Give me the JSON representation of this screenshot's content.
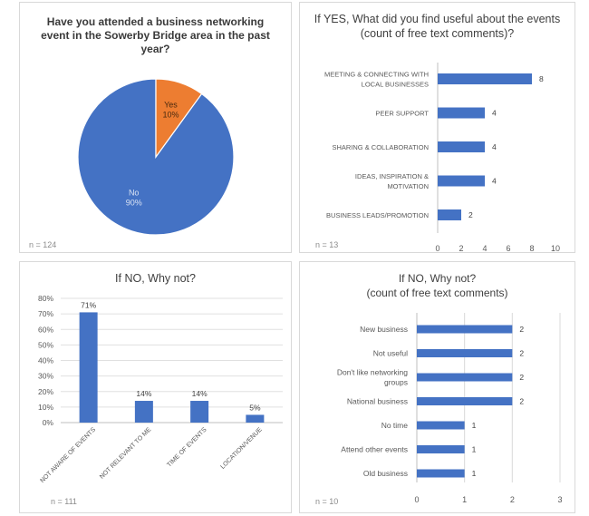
{
  "chart_data": [
    {
      "type": "pie",
      "title": "Have you attended a business networking event in the Sowerby Bridge area in the past year?",
      "slices": [
        {
          "label": "No",
          "pct_label": "90%",
          "value": 90,
          "color": "#4472C4"
        },
        {
          "label": "Yes",
          "pct_label": "10%",
          "value": 10,
          "color": "#ED7D31"
        }
      ],
      "n_label": "n = 124"
    },
    {
      "type": "bar",
      "orientation": "horizontal",
      "title": "If YES, What did you find useful about the events (count of free text comments)?",
      "categories": [
        "MEETING & CONNECTING WITH LOCAL BUSINESSES",
        "PEER SUPPORT",
        "SHARING & COLLABORATION",
        "IDEAS, INSPIRATION & MOTIVATION",
        "BUSINESS LEADS/PROMOTION"
      ],
      "values": [
        8,
        4,
        4,
        4,
        2
      ],
      "xlim": [
        0,
        10
      ],
      "xticks": [
        "0",
        "2",
        "4",
        "6",
        "8",
        "10"
      ],
      "color": "#4472C4",
      "n_label": "n = 13"
    },
    {
      "type": "bar",
      "orientation": "vertical",
      "title": "If NO, Why not?",
      "categories": [
        "NOT AWARE OF EVENTS",
        "NOT RELEVANT TO ME",
        "TIME OF EVENTS",
        "LOCATION/VENUE"
      ],
      "values": [
        71,
        14,
        14,
        5
      ],
      "value_labels": [
        "71%",
        "14%",
        "14%",
        "5%"
      ],
      "ylim": [
        0,
        80
      ],
      "yticks": [
        "0%",
        "10%",
        "20%",
        "30%",
        "40%",
        "50%",
        "60%",
        "70%",
        "80%"
      ],
      "grid": true,
      "color": "#4472C4",
      "n_label": "n = 111"
    },
    {
      "type": "bar",
      "orientation": "horizontal",
      "title": "If NO, Why not?",
      "subtitle": "(count of free text comments)",
      "categories": [
        "New business",
        "Not useful",
        "Don't like networking groups",
        "National business",
        "No time",
        "Attend other events",
        "Old business"
      ],
      "values": [
        2,
        2,
        2,
        2,
        1,
        1,
        1
      ],
      "xlim": [
        0,
        3
      ],
      "xticks": [
        "0",
        "1",
        "2",
        "3"
      ],
      "grid": true,
      "color": "#4472C4",
      "n_label": "n = 10"
    }
  ]
}
